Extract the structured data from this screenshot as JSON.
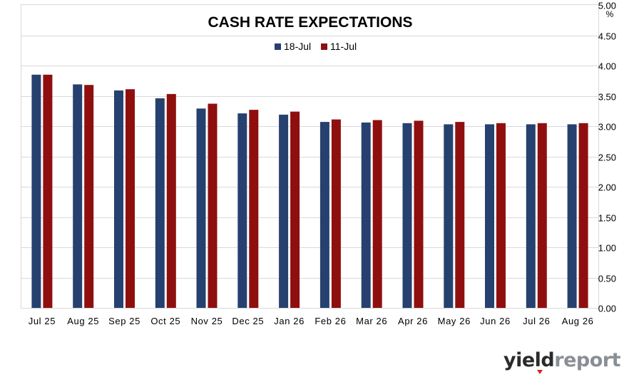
{
  "chart_data": {
    "type": "bar",
    "title": "CASH RATE EXPECTATIONS",
    "ylabel": "%",
    "ylim": [
      0,
      5
    ],
    "yticks": [
      "0.00",
      "0.50",
      "1.00",
      "1.50",
      "2.00",
      "2.50",
      "3.00",
      "3.50",
      "4.00",
      "4.50",
      "5.00"
    ],
    "grid": true,
    "legend_position": "top-center",
    "categories": [
      "Jul 25",
      "Aug 25",
      "Sep 25",
      "Oct 25",
      "Nov 25",
      "Dec 25",
      "Jan 26",
      "Feb 26",
      "Mar 26",
      "Apr 26",
      "May 26",
      "Jun 26",
      "Jul 26",
      "Aug 26"
    ],
    "series": [
      {
        "name": "18-Jul",
        "color": "#26416f",
        "values": [
          3.85,
          3.69,
          3.59,
          3.46,
          3.29,
          3.21,
          3.19,
          3.07,
          3.06,
          3.05,
          3.03,
          3.03,
          3.03,
          3.03
        ]
      },
      {
        "name": "11-Jul",
        "color": "#8f0f0f",
        "values": [
          3.85,
          3.68,
          3.61,
          3.53,
          3.37,
          3.27,
          3.24,
          3.11,
          3.1,
          3.09,
          3.07,
          3.05,
          3.05,
          3.05
        ]
      }
    ]
  },
  "logo": {
    "part1": "yield",
    "part2": "report"
  }
}
